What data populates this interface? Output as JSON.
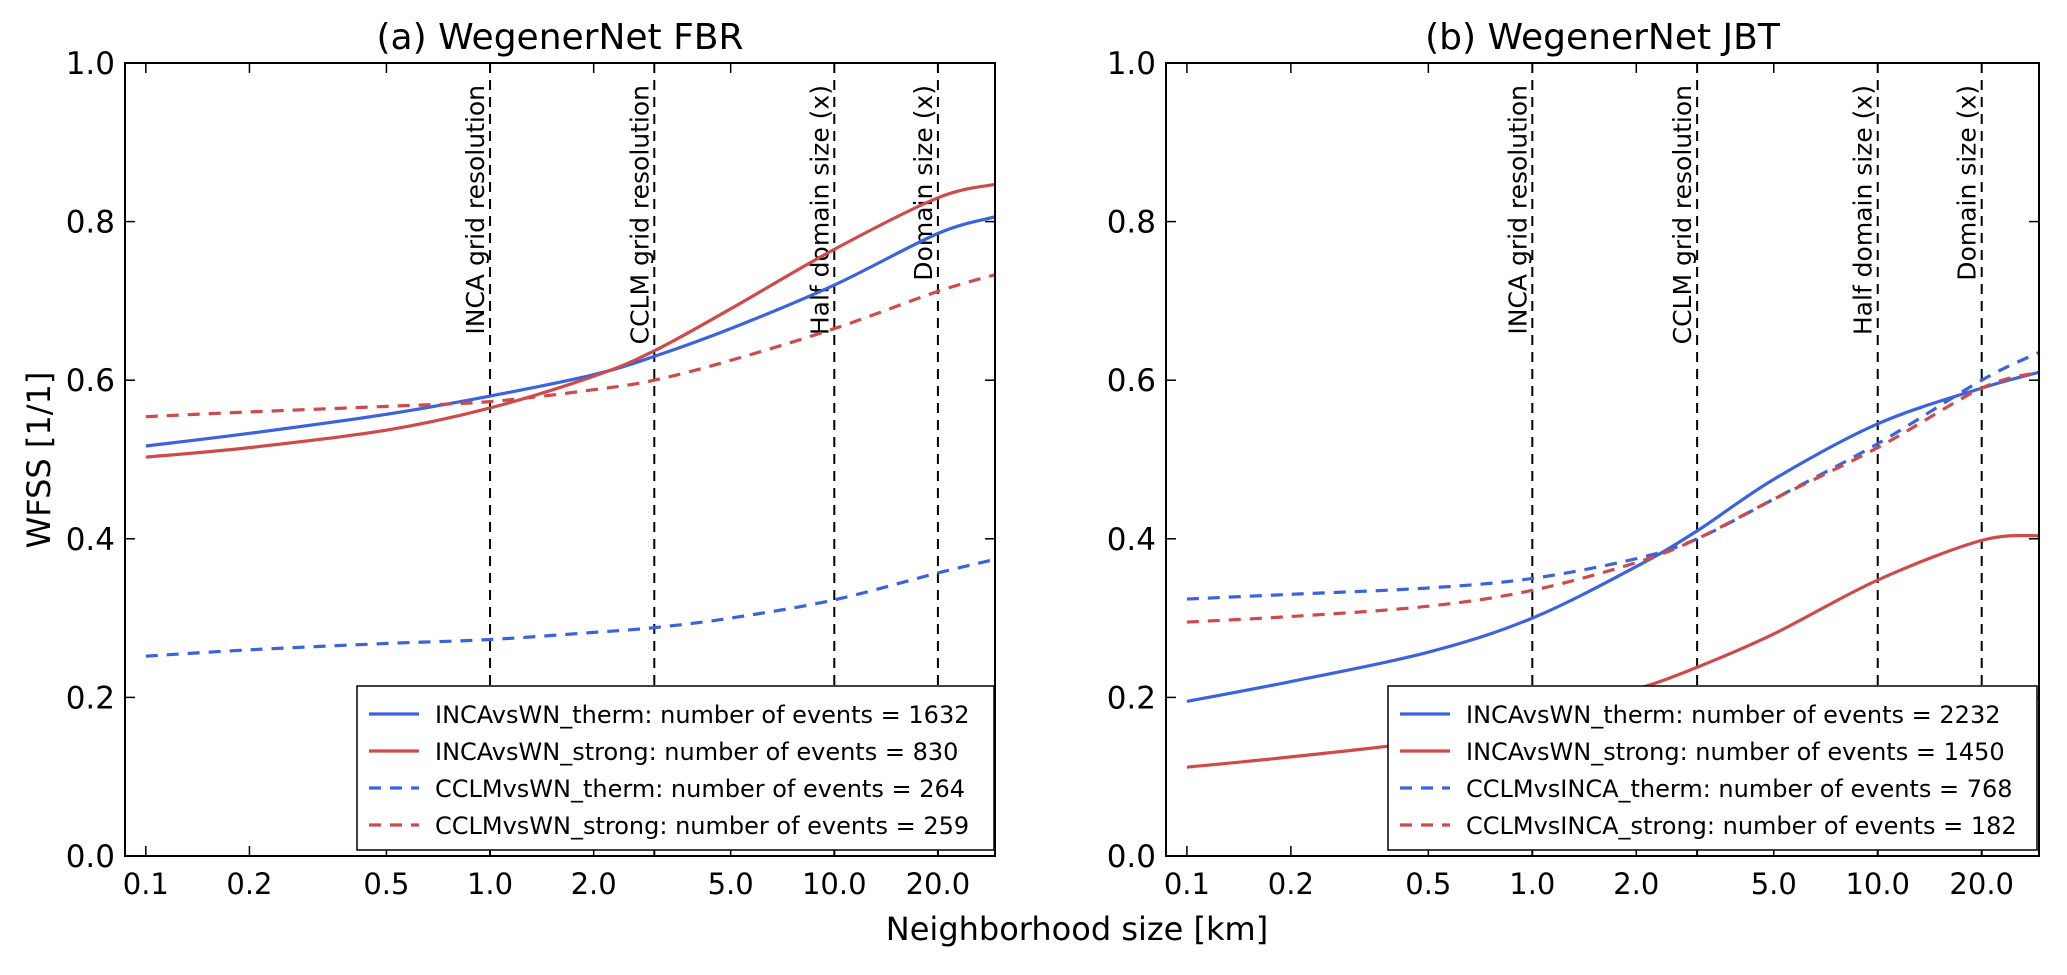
{
  "figure": {
    "ylabel": "WFSS [1/1]",
    "xlabel": "Neighborhood size [km]"
  },
  "colors": {
    "blue": "#3b63e0",
    "red": "#cf4a4a"
  },
  "chart_data": [
    {
      "type": "line",
      "title": "(a) WegenerNet FBR",
      "xscale": "log",
      "xlim": [
        0.087,
        29.3
      ],
      "ylim": [
        0.0,
        1.0
      ],
      "xticks": [
        0.1,
        0.2,
        0.5,
        1.0,
        2.0,
        5.0,
        10.0,
        20.0
      ],
      "xtick_labels": [
        "0.1",
        "0.2",
        "0.5",
        "1.0",
        "2.0",
        "5.0",
        "10.0",
        "20.0"
      ],
      "yticks": [
        0.0,
        0.2,
        0.4,
        0.6,
        0.8,
        1.0
      ],
      "ytick_labels": [
        "0.0",
        "0.2",
        "0.4",
        "0.6",
        "0.8",
        "1.0"
      ],
      "legend_position": "lower-right",
      "vlines": [
        {
          "x": 1,
          "label": "INCA grid resolution"
        },
        {
          "x": 3,
          "label": "CCLM grid resolution"
        },
        {
          "x": 10,
          "label": "Half domain size (x)"
        },
        {
          "x": 20,
          "label": "Domain size (x)"
        }
      ],
      "x": [
        0.1,
        0.2,
        0.5,
        1,
        2,
        3,
        5,
        10,
        20,
        29.3
      ],
      "series": [
        {
          "name": "INCAvsWN_therm: number of events = 1632",
          "color": "blue",
          "dash": false,
          "values": [
            0.517,
            0.533,
            0.557,
            0.58,
            0.607,
            0.63,
            0.665,
            0.72,
            0.785,
            0.806
          ]
        },
        {
          "name": "INCAvsWN_strong: number of events = 830",
          "color": "red",
          "dash": false,
          "values": [
            0.503,
            0.515,
            0.537,
            0.565,
            0.605,
            0.637,
            0.69,
            0.765,
            0.83,
            0.847
          ]
        },
        {
          "name": "CCLMvsWN_therm: number of events = 264",
          "color": "blue",
          "dash": true,
          "values": [
            0.252,
            0.26,
            0.268,
            0.273,
            0.282,
            0.288,
            0.3,
            0.323,
            0.357,
            0.374
          ]
        },
        {
          "name": "CCLMvsWN_strong: number of events = 259",
          "color": "red",
          "dash": true,
          "values": [
            0.554,
            0.56,
            0.567,
            0.573,
            0.588,
            0.6,
            0.625,
            0.665,
            0.712,
            0.733
          ]
        }
      ]
    },
    {
      "type": "line",
      "title": "(b) WegenerNet JBT",
      "xscale": "log",
      "xlim": [
        0.087,
        29.3
      ],
      "ylim": [
        0.0,
        1.0
      ],
      "xticks": [
        0.1,
        0.2,
        0.5,
        1.0,
        2.0,
        5.0,
        10.0,
        20.0
      ],
      "xtick_labels": [
        "0.1",
        "0.2",
        "0.5",
        "1.0",
        "2.0",
        "5.0",
        "10.0",
        "20.0"
      ],
      "yticks": [
        0.0,
        0.2,
        0.4,
        0.6,
        0.8,
        1.0
      ],
      "ytick_labels": [
        "0.0",
        "0.2",
        "0.4",
        "0.6",
        "0.8",
        "1.0"
      ],
      "legend_position": "lower-right",
      "vlines": [
        {
          "x": 1,
          "label": "INCA grid resolution"
        },
        {
          "x": 3,
          "label": "CCLM grid resolution"
        },
        {
          "x": 10,
          "label": "Half domain size (x)"
        },
        {
          "x": 20,
          "label": "Domain size (x)"
        }
      ],
      "x": [
        0.1,
        0.2,
        0.5,
        1,
        2,
        3,
        5,
        10,
        20,
        29.3
      ],
      "series": [
        {
          "name": "INCAvsWN_therm: number of events = 2232",
          "color": "blue",
          "dash": false,
          "values": [
            0.195,
            0.22,
            0.257,
            0.3,
            0.365,
            0.41,
            0.475,
            0.545,
            0.59,
            0.61
          ]
        },
        {
          "name": "INCAvsWN_strong: number of events = 1450",
          "color": "red",
          "dash": false,
          "values": [
            0.112,
            0.125,
            0.145,
            0.17,
            0.21,
            0.238,
            0.28,
            0.348,
            0.398,
            0.404
          ]
        },
        {
          "name": "CCLMvsINCA_therm: number of events = 768",
          "color": "blue",
          "dash": true,
          "values": [
            0.324,
            0.33,
            0.338,
            0.35,
            0.375,
            0.4,
            0.45,
            0.52,
            0.6,
            0.635
          ]
        },
        {
          "name": "CCLMvsINCA_strong: number of events = 182",
          "color": "red",
          "dash": true,
          "values": [
            0.295,
            0.302,
            0.315,
            0.335,
            0.37,
            0.4,
            0.45,
            0.515,
            0.59,
            0.61
          ]
        }
      ]
    }
  ]
}
